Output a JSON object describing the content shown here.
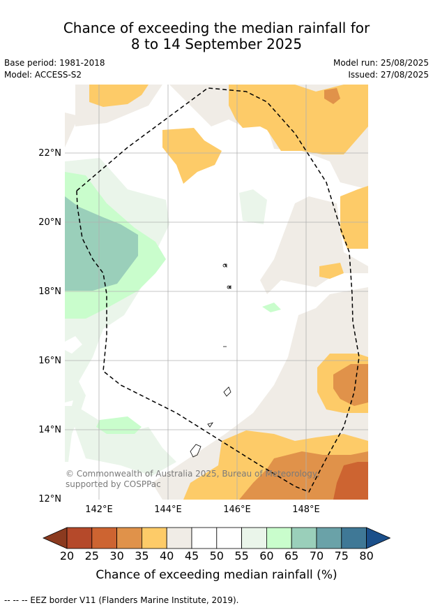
{
  "title_line1": "Chance of exceeding the median rainfall for",
  "title_line2": "8 to 14 September 2025",
  "base_period": "Base period: 1981-2018",
  "model": "Model: ACCESS-S2",
  "model_run": "Model run: 25/08/2025",
  "issued": "Issued: 27/08/2025",
  "lat_labels": [
    "22°N",
    "20°N",
    "18°N",
    "16°N",
    "14°N",
    "12°N"
  ],
  "lon_labels": [
    "142°E",
    "144°E",
    "146°E",
    "148°E"
  ],
  "copyright": "© Commonwealth of Australia 2025, Bureau of Meteorology, supported by COSPPac",
  "colorbar": {
    "ticks": [
      "20",
      "25",
      "30",
      "35",
      "40",
      "45",
      "50",
      "55",
      "60",
      "65",
      "70",
      "75",
      "80"
    ],
    "colors": [
      "#8b3a1f",
      "#b5492a",
      "#cd6431",
      "#e0924a",
      "#fdcb68",
      "#f0ece6",
      "#ffffff",
      "#ffffff",
      "#eaf5ea",
      "#c9fdcc",
      "#9acfba",
      "#6aa2a8",
      "#3f7896",
      "#1b4f8a"
    ],
    "label": "Chance of exceeding median rainfall (%)"
  },
  "footnote": "--  --  -- EEZ border V11 (Flanders Marine Institute, 2019)."
}
